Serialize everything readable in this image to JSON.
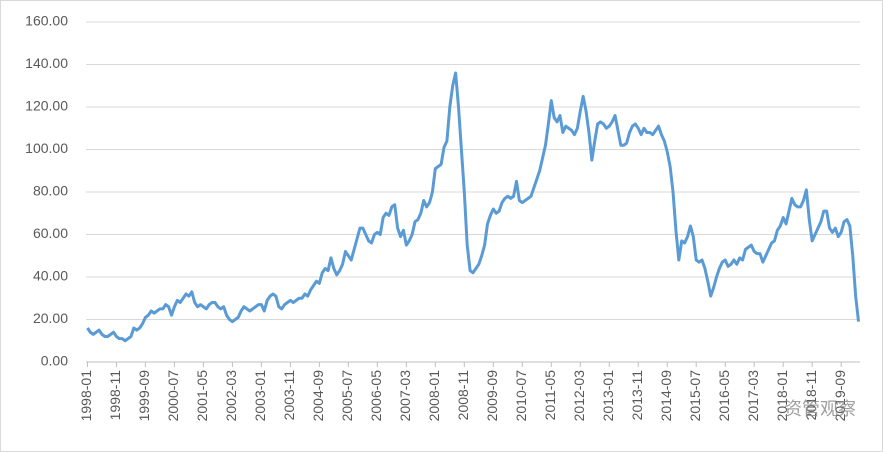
{
  "chart_data": {
    "type": "line",
    "categories": [
      "1998-01",
      null,
      null,
      null,
      null,
      null,
      null,
      null,
      null,
      null,
      "1998-11",
      null,
      null,
      null,
      null,
      null,
      null,
      null,
      null,
      null,
      "1999-09",
      null,
      null,
      null,
      null,
      null,
      null,
      null,
      null,
      null,
      "2000-07",
      null,
      null,
      null,
      null,
      null,
      null,
      null,
      null,
      null,
      "2001-05",
      null,
      null,
      null,
      null,
      null,
      null,
      null,
      null,
      null,
      "2002-03",
      null,
      null,
      null,
      null,
      null,
      null,
      null,
      null,
      null,
      "2003-01",
      null,
      null,
      null,
      null,
      null,
      null,
      null,
      null,
      null,
      "2003-11",
      null,
      null,
      null,
      null,
      null,
      null,
      null,
      null,
      null,
      "2004-09",
      null,
      null,
      null,
      null,
      null,
      null,
      null,
      null,
      null,
      "2005-07",
      null,
      null,
      null,
      null,
      null,
      null,
      null,
      null,
      null,
      "2006-05",
      null,
      null,
      null,
      null,
      null,
      null,
      null,
      null,
      null,
      "2007-03",
      null,
      null,
      null,
      null,
      null,
      null,
      null,
      null,
      null,
      "2008-01",
      null,
      null,
      null,
      null,
      null,
      null,
      null,
      null,
      null,
      "2008-11",
      null,
      null,
      null,
      null,
      null,
      null,
      null,
      null,
      null,
      "2009-09",
      null,
      null,
      null,
      null,
      null,
      null,
      null,
      null,
      null,
      "2010-07",
      null,
      null,
      null,
      null,
      null,
      null,
      null,
      null,
      null,
      "2011-05",
      null,
      null,
      null,
      null,
      null,
      null,
      null,
      null,
      null,
      "2012-03",
      null,
      null,
      null,
      null,
      null,
      null,
      null,
      null,
      null,
      "2013-01",
      null,
      null,
      null,
      null,
      null,
      null,
      null,
      null,
      null,
      "2013-11",
      null,
      null,
      null,
      null,
      null,
      null,
      null,
      null,
      null,
      "2014-09",
      null,
      null,
      null,
      null,
      null,
      null,
      null,
      null,
      null,
      "2015-07",
      null,
      null,
      null,
      null,
      null,
      null,
      null,
      null,
      null,
      "2016-05",
      null,
      null,
      null,
      null,
      null,
      null,
      null,
      null,
      null,
      "2017-03",
      null,
      null,
      null,
      null,
      null,
      null,
      null,
      null,
      null,
      "2018-01",
      null,
      null,
      null,
      null,
      null,
      null,
      null,
      null,
      null,
      "2018-11",
      null,
      null,
      null,
      null,
      null,
      null,
      null,
      null,
      null,
      "2019-09",
      null,
      null,
      null,
      null,
      null,
      null
    ],
    "series": [
      {
        "color": "#5b9bd5",
        "values": [
          16,
          14,
          13,
          14,
          15,
          13,
          12,
          12,
          13,
          14,
          12,
          11,
          11,
          10,
          11,
          12,
          16,
          15,
          16,
          18,
          21,
          22,
          24,
          23,
          24,
          25,
          25,
          27,
          26,
          22,
          26,
          29,
          28,
          30,
          32,
          31,
          33,
          28,
          26,
          27,
          26,
          25,
          27,
          28,
          28,
          26,
          25,
          26,
          22,
          20,
          19,
          20,
          21,
          24,
          26,
          25,
          24,
          25,
          26,
          27,
          27,
          24,
          29,
          31,
          32,
          31,
          26,
          25,
          27,
          28,
          29,
          28,
          29,
          30,
          30,
          32,
          31,
          34,
          36,
          38,
          37,
          42,
          44,
          43,
          49,
          44,
          41,
          43,
          46,
          52,
          50,
          48,
          53,
          58,
          63,
          63,
          60,
          57,
          56,
          60,
          61,
          60,
          68,
          70,
          69,
          73,
          74,
          63,
          59,
          62,
          55,
          57,
          60,
          66,
          67,
          70,
          76,
          73,
          75,
          80,
          91,
          92,
          93,
          101,
          104,
          120,
          130,
          136,
          120,
          100,
          80,
          55,
          43,
          42,
          44,
          46,
          50,
          55,
          65,
          69,
          72,
          70,
          71,
          75,
          77,
          78,
          77,
          78,
          85,
          76,
          75,
          76,
          77,
          78,
          82,
          86,
          90,
          96,
          102,
          112,
          123,
          115,
          113,
          116,
          108,
          111,
          110,
          109,
          107,
          110,
          118,
          125,
          118,
          108,
          95,
          104,
          112,
          113,
          112,
          110,
          111,
          113,
          116,
          109,
          102,
          102,
          103,
          108,
          111,
          112,
          110,
          107,
          110,
          108,
          108,
          107,
          109,
          111,
          107,
          104,
          99,
          92,
          80,
          62,
          48,
          57,
          56,
          59,
          64,
          59,
          48,
          47,
          48,
          44,
          38,
          31,
          35,
          40,
          44,
          47,
          48,
          45,
          46,
          48,
          46,
          49,
          48,
          53,
          54,
          55,
          52,
          51,
          51,
          47,
          50,
          53,
          56,
          57,
          62,
          64,
          68,
          65,
          71,
          77,
          74,
          73,
          73,
          76,
          81,
          67,
          57,
          60,
          63,
          66,
          71,
          71,
          63,
          61,
          63,
          59,
          61,
          66,
          67,
          64,
          50,
          31,
          19
        ]
      }
    ],
    "ylim": [
      0,
      160
    ],
    "yticks": [
      {
        "value": 0,
        "label": "0.00"
      },
      {
        "value": 20,
        "label": "20.00"
      },
      {
        "value": 40,
        "label": "40.00"
      },
      {
        "value": 60,
        "label": "60.00"
      },
      {
        "value": 80,
        "label": "80.00"
      },
      {
        "value": 100,
        "label": "100.00"
      },
      {
        "value": 120,
        "label": "120.00"
      },
      {
        "value": 140,
        "label": "140.00"
      },
      {
        "value": 160,
        "label": "160.00"
      }
    ],
    "grid": true,
    "watermark": "资管观察"
  }
}
